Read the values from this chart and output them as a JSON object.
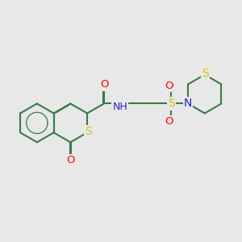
{
  "background_color": "#e8e8e8",
  "bond_color": "#3a7a4a",
  "bond_width": 1.5,
  "atom_colors": {
    "O": "#ff0000",
    "S": "#cccc00",
    "N": "#2222cc",
    "H": "#888888"
  },
  "font_size": 9.5,
  "figsize": [
    3.0,
    3.0
  ],
  "dpi": 100
}
